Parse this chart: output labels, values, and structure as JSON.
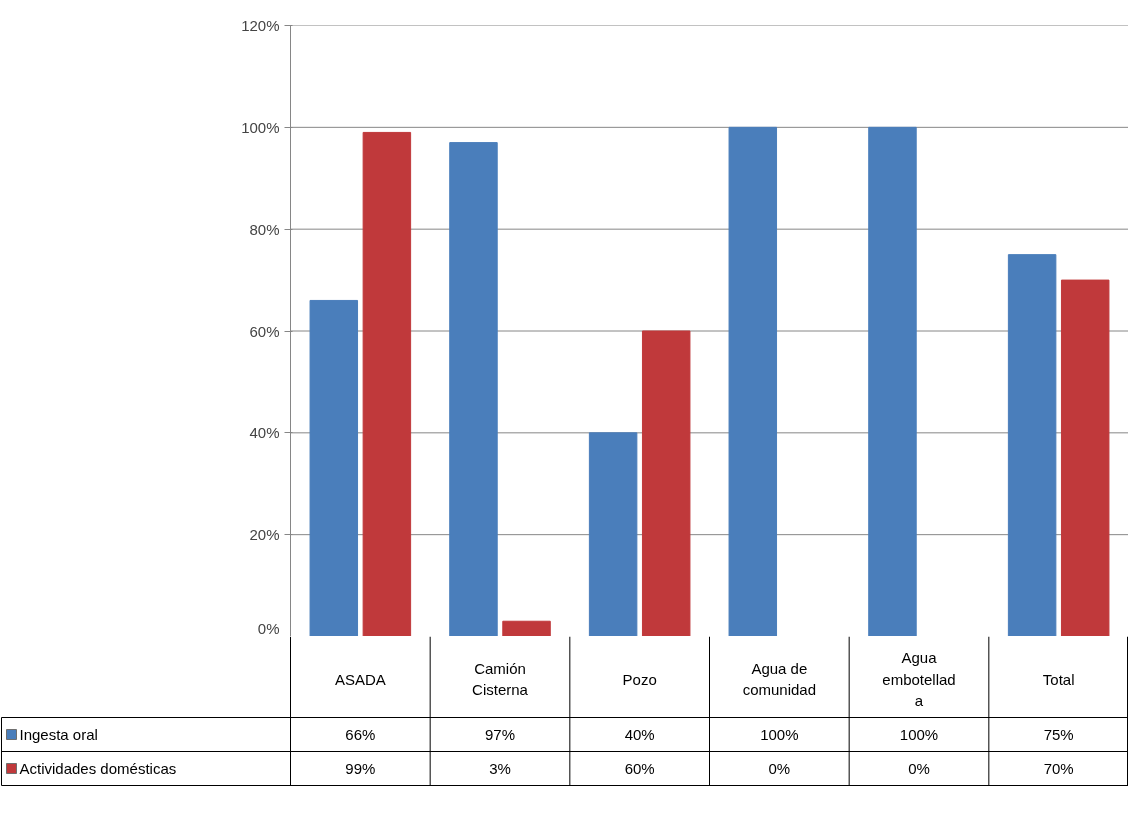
{
  "chart_data": {
    "type": "bar",
    "categories": [
      "ASADA",
      "Camión Cisterna",
      "Pozo",
      "Agua de comunidad",
      "Agua embotellada",
      "Total"
    ],
    "series": [
      {
        "name": "Ingesta oral",
        "color": "#4a7ebb",
        "values": [
          66,
          97,
          40,
          100,
          100,
          75
        ],
        "value_labels": [
          "66%",
          "97%",
          "40%",
          "100%",
          "100%",
          "75%"
        ]
      },
      {
        "name": "Actividades domésticas",
        "color": "#c0393b",
        "values": [
          99,
          3,
          60,
          0,
          0,
          70
        ],
        "value_labels": [
          "99%",
          "3%",
          "60%",
          "0%",
          "0%",
          "70%"
        ]
      }
    ],
    "ylim": [
      0,
      120
    ],
    "yticks": [
      {
        "value": 0,
        "label": "0%"
      },
      {
        "value": 20,
        "label": "20%"
      },
      {
        "value": 40,
        "label": "40%"
      },
      {
        "value": 60,
        "label": "60%"
      },
      {
        "value": 80,
        "label": "80%"
      },
      {
        "value": 100,
        "label": "100%"
      },
      {
        "value": 120,
        "label": "120%"
      }
    ],
    "grid": "y",
    "legend": "bottom"
  }
}
